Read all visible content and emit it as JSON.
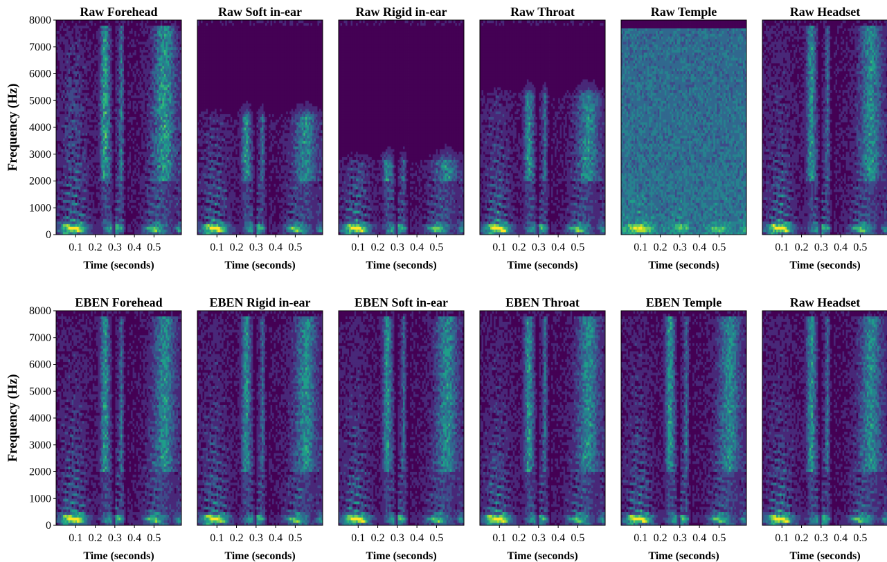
{
  "chart_data": [
    {
      "type": "heatmap",
      "title": "Raw Forehead",
      "xlabel": "Time (seconds)",
      "ylabel": "Frequency (Hz)",
      "x_ticks": [
        "0.1",
        "0.2",
        "0.3",
        "0.4",
        "0.5"
      ],
      "y_ticks": [
        "0",
        "1000",
        "2000",
        "3000",
        "4000",
        "5000",
        "6000",
        "7000",
        "8000"
      ],
      "xlim": [
        0,
        0.64
      ],
      "ylim": [
        0,
        8000
      ],
      "profile": "rawForehead"
    },
    {
      "type": "heatmap",
      "title": "Raw Soft in-ear",
      "xlabel": "Time (seconds)",
      "ylabel": "",
      "x_ticks": [
        "0.1",
        "0.2",
        "0.3",
        "0.4",
        "0.5"
      ],
      "y_ticks": [],
      "xlim": [
        0,
        0.64
      ],
      "ylim": [
        0,
        8000
      ],
      "profile": "rawSoft"
    },
    {
      "type": "heatmap",
      "title": "Raw Rigid in-ear",
      "xlabel": "Time (seconds)",
      "ylabel": "",
      "x_ticks": [
        "0.1",
        "0.2",
        "0.3",
        "0.4",
        "0.5"
      ],
      "y_ticks": [],
      "xlim": [
        0,
        0.64
      ],
      "ylim": [
        0,
        8000
      ],
      "profile": "rawRigid"
    },
    {
      "type": "heatmap",
      "title": "Raw Throat",
      "xlabel": "Time (seconds)",
      "ylabel": "",
      "x_ticks": [
        "0.1",
        "0.2",
        "0.3",
        "0.4",
        "0.5"
      ],
      "y_ticks": [],
      "xlim": [
        0,
        0.64
      ],
      "ylim": [
        0,
        8000
      ],
      "profile": "rawThroat"
    },
    {
      "type": "heatmap",
      "title": "Raw Temple",
      "xlabel": "Time (seconds)",
      "ylabel": "",
      "x_ticks": [
        "0.1",
        "0.2",
        "0.3",
        "0.4",
        "0.5"
      ],
      "y_ticks": [],
      "xlim": [
        0,
        0.64
      ],
      "ylim": [
        0,
        8000
      ],
      "profile": "rawTemple"
    },
    {
      "type": "heatmap",
      "title": "Raw Headset",
      "xlabel": "Time (seconds)",
      "ylabel": "",
      "x_ticks": [
        "0.1",
        "0.2",
        "0.3",
        "0.4",
        "0.5"
      ],
      "y_ticks": [],
      "xlim": [
        0,
        0.64
      ],
      "ylim": [
        0,
        8000
      ],
      "profile": "full"
    },
    {
      "type": "heatmap",
      "title": "EBEN Forehead",
      "xlabel": "Time (seconds)",
      "ylabel": "Frequency (Hz)",
      "x_ticks": [
        "0.1",
        "0.2",
        "0.3",
        "0.4",
        "0.5"
      ],
      "y_ticks": [
        "0",
        "1000",
        "2000",
        "3000",
        "4000",
        "5000",
        "6000",
        "7000",
        "8000"
      ],
      "xlim": [
        0,
        0.64
      ],
      "ylim": [
        0,
        8000
      ],
      "profile": "full"
    },
    {
      "type": "heatmap",
      "title": "EBEN Rigid in-ear",
      "xlabel": "Time (seconds)",
      "ylabel": "",
      "x_ticks": [
        "0.1",
        "0.2",
        "0.3",
        "0.4",
        "0.5"
      ],
      "y_ticks": [],
      "xlim": [
        0,
        0.64
      ],
      "ylim": [
        0,
        8000
      ],
      "profile": "full"
    },
    {
      "type": "heatmap",
      "title": "EBEN Soft in-ear",
      "xlabel": "Time (seconds)",
      "ylabel": "",
      "x_ticks": [
        "0.1",
        "0.2",
        "0.3",
        "0.4",
        "0.5"
      ],
      "y_ticks": [],
      "xlim": [
        0,
        0.64
      ],
      "ylim": [
        0,
        8000
      ],
      "profile": "full"
    },
    {
      "type": "heatmap",
      "title": "EBEN Throat",
      "xlabel": "Time (seconds)",
      "ylabel": "",
      "x_ticks": [
        "0.1",
        "0.2",
        "0.3",
        "0.4",
        "0.5"
      ],
      "y_ticks": [],
      "xlim": [
        0,
        0.64
      ],
      "ylim": [
        0,
        8000
      ],
      "profile": "full"
    },
    {
      "type": "heatmap",
      "title": "EBEN Temple",
      "xlabel": "Time (seconds)",
      "ylabel": "",
      "x_ticks": [
        "0.1",
        "0.2",
        "0.3",
        "0.4",
        "0.5"
      ],
      "y_ticks": [],
      "xlim": [
        0,
        0.64
      ],
      "ylim": [
        0,
        8000
      ],
      "profile": "full"
    },
    {
      "type": "heatmap",
      "title": "Raw Headset",
      "xlabel": "Time (seconds)",
      "ylabel": "",
      "x_ticks": [
        "0.1",
        "0.2",
        "0.3",
        "0.4",
        "0.5"
      ],
      "y_ticks": [],
      "xlim": [
        0,
        0.64
      ],
      "ylim": [
        0,
        8000
      ],
      "profile": "full"
    }
  ],
  "colors": {
    "colormap": [
      "#440154",
      "#482878",
      "#3e4a89",
      "#31688e",
      "#26828e",
      "#1f9e89",
      "#35b779",
      "#6ece58",
      "#b5de2b",
      "#fde725"
    ],
    "axis": "#000000",
    "background": "#ffffff"
  }
}
